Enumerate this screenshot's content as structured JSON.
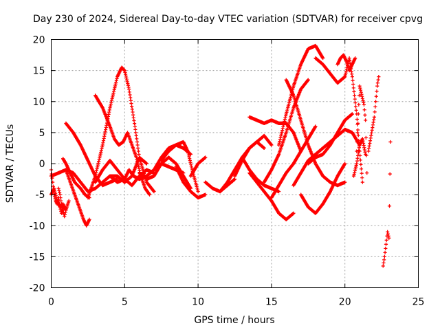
{
  "chart_data": {
    "type": "scatter",
    "title": "Day 230 of 2024, Sidereal Day-to-day VTEC variation (SDTVAR) for receiver cpvg",
    "xlabel": "GPS time / hours",
    "ylabel": "SDTVAR / TECUs",
    "xlim": [
      0,
      25
    ],
    "ylim": [
      -20,
      20
    ],
    "xticks": [
      0,
      5,
      10,
      15,
      20,
      25
    ],
    "yticks": [
      -20,
      -15,
      -10,
      -5,
      0,
      5,
      10,
      15,
      20
    ],
    "grid": true,
    "marker": "+",
    "color": "#ff0000",
    "series": [
      {
        "name": "s1",
        "x": [
          0.0,
          0.1,
          0.2,
          0.3,
          0.4,
          0.5,
          0.6,
          0.7,
          0.8
        ],
        "y": [
          -1.0,
          -3.0,
          -5.0,
          -6.0,
          -6.5,
          -5.5,
          -7.0,
          -8.0,
          -7.0
        ]
      },
      {
        "name": "s2",
        "x": [
          0.0,
          0.2,
          0.4,
          0.6,
          0.8,
          1.0,
          1.2
        ],
        "y": [
          -5.0,
          -4.0,
          -6.0,
          -7.0,
          -6.5,
          -7.5,
          -6.0
        ]
      },
      {
        "name": "s3",
        "x": [
          0.5,
          0.6,
          0.7,
          0.8,
          0.9,
          1.0
        ],
        "y": [
          -4.0,
          -5.0,
          -6.5,
          -7.5,
          -8.5,
          -7.5
        ]
      },
      {
        "name": "s4",
        "x": [
          0.8,
          1.0,
          1.3,
          1.6,
          2.0,
          2.3,
          2.6
        ],
        "y": [
          0.8,
          0.0,
          -1.5,
          -3.0,
          -4.0,
          -5.0,
          -5.5
        ]
      },
      {
        "name": "s5",
        "x": [
          1.0,
          1.3,
          1.6,
          1.9,
          2.2,
          2.4,
          2.6
        ],
        "y": [
          -1.0,
          -3.0,
          -5.0,
          -7.0,
          -9.0,
          -10.0,
          -9.0
        ]
      },
      {
        "name": "s6",
        "x": [
          1.0,
          1.5,
          2.0,
          2.5,
          3.0,
          3.5,
          4.0,
          4.5
        ],
        "y": [
          6.5,
          5.0,
          3.0,
          0.5,
          -2.0,
          -3.5,
          -3.0,
          -2.5
        ]
      },
      {
        "name": "s7",
        "x": [
          0.0,
          0.5,
          1.0,
          1.5,
          2.0,
          2.5,
          3.0,
          3.5,
          4.0,
          4.5,
          5.0,
          5.5,
          6.0,
          6.5
        ],
        "y": [
          -2.0,
          -1.5,
          -1.0,
          -1.5,
          -3.0,
          -4.5,
          -4.0,
          -3.0,
          -2.0,
          -2.0,
          -3.0,
          -2.0,
          1.0,
          0.0
        ]
      },
      {
        "name": "s8",
        "x": [
          3.0,
          3.5,
          4.0,
          4.3,
          4.6,
          4.9,
          5.2,
          5.5,
          5.8,
          6.1,
          6.4,
          6.7
        ],
        "y": [
          11.0,
          9.0,
          6.0,
          4.0,
          3.0,
          3.5,
          5.0,
          3.0,
          1.0,
          -2.0,
          -4.0,
          -5.0
        ]
      },
      {
        "name": "s9",
        "x": [
          2.5,
          3.0,
          3.5,
          4.0,
          4.5,
          4.8,
          5.0,
          5.3,
          5.7,
          6.0,
          6.5,
          7.0
        ],
        "y": [
          -5.5,
          -2.0,
          3.0,
          9.0,
          14.0,
          15.5,
          15.0,
          12.0,
          6.0,
          1.0,
          -3.0,
          -4.5
        ]
      },
      {
        "name": "s10",
        "x": [
          3.0,
          3.5,
          4.0,
          4.5,
          5.0,
          5.5,
          6.0,
          6.5,
          7.0
        ],
        "y": [
          -3.0,
          -1.0,
          0.5,
          -1.0,
          -2.5,
          -3.5,
          -2.0,
          -1.0,
          -1.5
        ]
      },
      {
        "name": "s11",
        "x": [
          4.0,
          4.5,
          5.0,
          5.3,
          5.6,
          6.0,
          6.5,
          7.0,
          7.5,
          8.0,
          8.5,
          9.0
        ],
        "y": [
          -2.0,
          -3.0,
          -2.5,
          -1.0,
          -2.0,
          -2.5,
          -2.0,
          -1.0,
          0.0,
          -0.5,
          -1.0,
          -1.5
        ]
      },
      {
        "name": "s12",
        "x": [
          6.5,
          7.0,
          7.5,
          8.0,
          8.5,
          9.0,
          9.5
        ],
        "y": [
          -2.0,
          -1.0,
          1.0,
          2.5,
          3.0,
          2.5,
          1.5
        ]
      },
      {
        "name": "s13",
        "x": [
          7.5,
          8.0,
          8.5,
          9.0,
          9.3,
          9.6,
          10.0
        ],
        "y": [
          0.5,
          2.0,
          3.0,
          3.5,
          2.0,
          -1.0,
          -4.5
        ]
      },
      {
        "name": "s14",
        "x": [
          6.0,
          6.5,
          7.0,
          7.5,
          8.0,
          8.5,
          9.0,
          9.5
        ],
        "y": [
          -1.5,
          -2.5,
          -2.0,
          0.0,
          1.0,
          0.0,
          -2.0,
          -4.0
        ]
      },
      {
        "name": "s15",
        "x": [
          8.5,
          9.0,
          9.5,
          10.0,
          10.5
        ],
        "y": [
          -0.5,
          -3.0,
          -4.5,
          -5.5,
          -5.0
        ]
      },
      {
        "name": "s16",
        "x": [
          9.5,
          10.0,
          10.5
        ],
        "y": [
          -2.0,
          0.0,
          1.0
        ]
      },
      {
        "name": "s17",
        "x": [
          10.5,
          11.0,
          11.5,
          12.0,
          12.5
        ],
        "y": [
          -3.0,
          -4.0,
          -4.5,
          -3.5,
          -2.5
        ]
      },
      {
        "name": "s18",
        "x": [
          11.5,
          12.0,
          12.5,
          13.0,
          13.5,
          14.0,
          14.5
        ],
        "y": [
          -4.5,
          -3.0,
          -1.0,
          1.0,
          2.5,
          3.5,
          2.5
        ]
      },
      {
        "name": "s19",
        "x": [
          12.5,
          13.0,
          13.5,
          14.0,
          14.5,
          15.0
        ],
        "y": [
          -2.0,
          0.5,
          2.5,
          3.5,
          4.5,
          3.0
        ]
      },
      {
        "name": "s20",
        "x": [
          13.0,
          13.5,
          14.0,
          14.5,
          15.0,
          15.5
        ],
        "y": [
          1.0,
          -1.0,
          -2.5,
          -3.5,
          -4.0,
          -4.5
        ]
      },
      {
        "name": "s21",
        "x": [
          13.5,
          14.0,
          14.5,
          15.0,
          15.5,
          16.0,
          16.5
        ],
        "y": [
          -1.5,
          -3.0,
          -4.5,
          -6.0,
          -8.0,
          -9.0,
          -8.0
        ]
      },
      {
        "name": "s22",
        "x": [
          13.5,
          14.0,
          14.5,
          15.0,
          15.5,
          16.0,
          16.5,
          17.0
        ],
        "y": [
          7.5,
          7.0,
          6.5,
          7.0,
          6.5,
          6.5,
          5.0,
          2.0
        ]
      },
      {
        "name": "s23",
        "x": [
          14.5,
          15.0,
          15.5,
          16.0,
          16.5,
          17.0,
          17.5
        ],
        "y": [
          -3.0,
          -1.0,
          1.5,
          5.0,
          9.0,
          12.0,
          13.5
        ]
      },
      {
        "name": "s24",
        "x": [
          15.0,
          15.5,
          16.0,
          16.5,
          17.0,
          17.5,
          18.0
        ],
        "y": [
          -5.5,
          -3.5,
          -1.5,
          0.0,
          2.0,
          4.0,
          6.0
        ]
      },
      {
        "name": "s25",
        "x": [
          15.5,
          16.0,
          16.5,
          17.0,
          17.5,
          18.0,
          18.5
        ],
        "y": [
          3.0,
          8.0,
          12.5,
          16.0,
          18.5,
          19.0,
          17.0
        ]
      },
      {
        "name": "s26",
        "x": [
          16.0,
          16.5,
          17.0,
          17.5,
          18.0,
          18.5,
          19.0,
          19.5,
          20.0
        ],
        "y": [
          13.5,
          11.0,
          7.0,
          3.0,
          0.0,
          -2.0,
          -3.0,
          -3.5,
          -3.0
        ]
      },
      {
        "name": "s27",
        "x": [
          17.0,
          17.5,
          18.0,
          18.5,
          19.0,
          19.5,
          20.0
        ],
        "y": [
          -5.0,
          -7.0,
          -8.0,
          -6.5,
          -4.5,
          -2.0,
          0.0
        ]
      },
      {
        "name": "s28",
        "x": [
          17.5,
          18.0,
          18.5,
          19.0,
          19.5,
          20.0,
          20.5
        ],
        "y": [
          0.0,
          1.0,
          1.5,
          3.0,
          5.0,
          7.0,
          8.0
        ]
      },
      {
        "name": "s29",
        "x": [
          16.5,
          17.0,
          17.5,
          18.0,
          18.5,
          19.0,
          19.5,
          20.0,
          20.5,
          21.0
        ],
        "y": [
          -3.5,
          -1.5,
          0.5,
          1.5,
          2.5,
          3.5,
          4.5,
          5.5,
          5.0,
          3.0
        ]
      },
      {
        "name": "s30",
        "x": [
          18.0,
          18.5,
          19.0,
          19.5,
          20.0,
          20.3,
          20.5,
          20.8,
          21.0,
          21.2
        ],
        "y": [
          17.0,
          16.0,
          14.5,
          13.0,
          14.0,
          17.0,
          14.0,
          8.0,
          2.0,
          -3.0
        ]
      },
      {
        "name": "s31",
        "x": [
          19.5,
          19.7,
          19.9,
          20.1,
          20.3,
          20.5,
          20.7
        ],
        "y": [
          16.0,
          17.0,
          17.5,
          16.5,
          15.0,
          16.0,
          17.0
        ]
      },
      {
        "name": "s32",
        "x": [
          20.6,
          20.8,
          21.0,
          21.2,
          21.4
        ],
        "y": [
          -2.0,
          0.0,
          3.0,
          4.0,
          1.5
        ]
      },
      {
        "name": "s33",
        "x": [
          20.8,
          21.0,
          21.1,
          21.2,
          21.3,
          21.4,
          21.5
        ],
        "y": [
          2.0,
          12.5,
          11.5,
          10.5,
          9.5,
          7.0,
          -1.5
        ]
      },
      {
        "name": "s34",
        "x": [
          21.6,
          22.0,
          22.1,
          22.2,
          22.3
        ],
        "y": [
          2.0,
          7.5,
          10.0,
          12.5,
          14.0
        ]
      },
      {
        "name": "s35",
        "x": [
          22.6,
          22.7,
          22.8,
          22.9,
          23.0,
          23.1
        ],
        "y": [
          -16.5,
          -15.0,
          -13.0,
          -11.0,
          -12.0,
          3.5
        ]
      }
    ]
  }
}
